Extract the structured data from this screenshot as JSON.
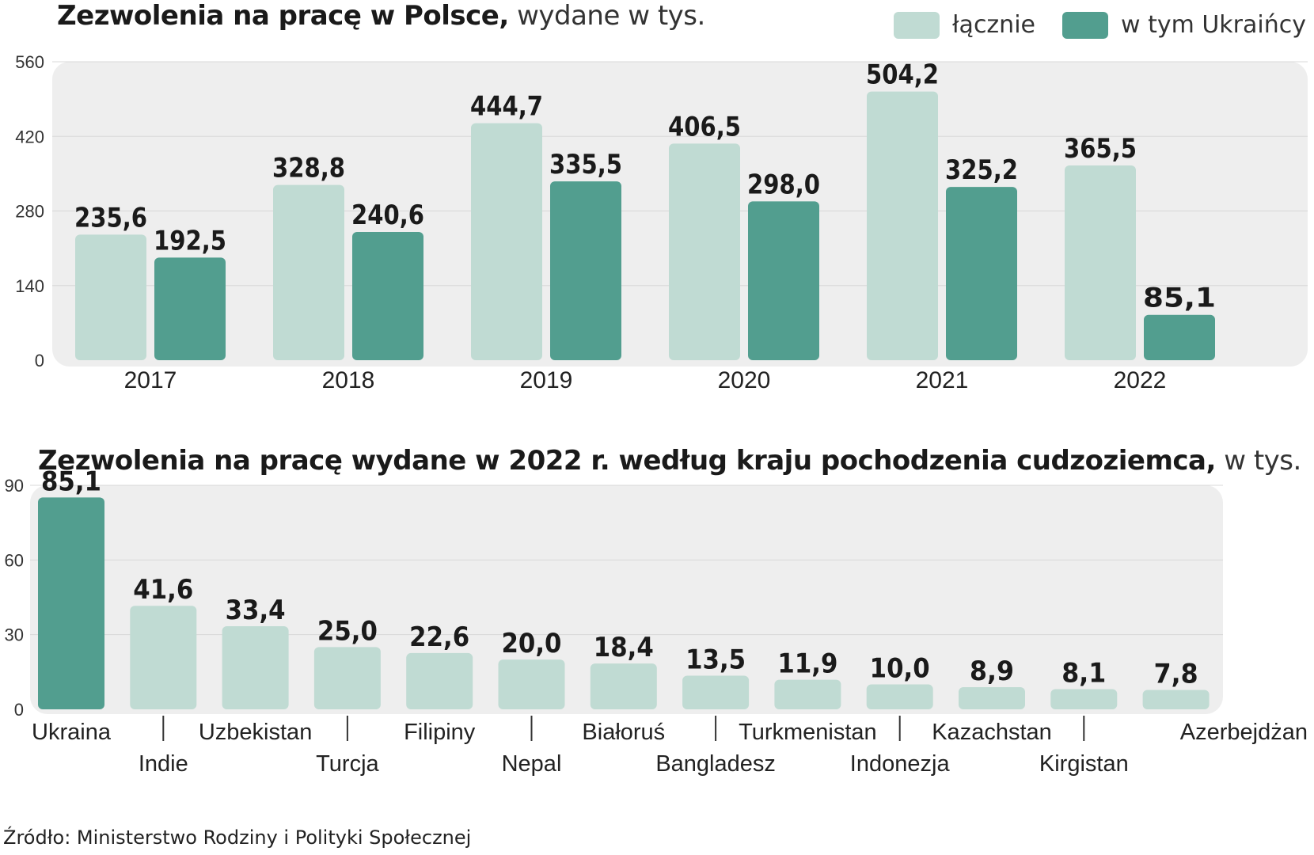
{
  "colors": {
    "total": "#c0dbd3",
    "ukraine": "#529e8f",
    "panel": "#eeeeee",
    "grid": "#d8d8d8"
  },
  "legend": {
    "total": "łącznie",
    "ukraine": "w tym Ukraińcy"
  },
  "source": "Źródło: Ministerstwo Rodziny i Polityki Społecznej",
  "chart_data": [
    {
      "type": "bar",
      "title": "Zezwolenia na pracę w Polsce,",
      "subtitle": "wydane w tys.",
      "categories": [
        "2017",
        "2018",
        "2019",
        "2020",
        "2021",
        "2022"
      ],
      "series": [
        {
          "name": "łącznie",
          "values": [
            235.6,
            328.8,
            444.7,
            406.5,
            504.2,
            365.5
          ],
          "labels": [
            "235,6",
            "328,8",
            "444,7",
            "406,5",
            "504,2",
            "365,5"
          ]
        },
        {
          "name": "w tym Ukraińcy",
          "values": [
            192.5,
            240.6,
            335.5,
            298.0,
            325.2,
            85.1
          ],
          "labels": [
            "192,5",
            "240,6",
            "335,5",
            "298,0",
            "325,2",
            "85,1"
          ]
        }
      ],
      "ylim": [
        0,
        560
      ],
      "yticks": [
        "0",
        "140",
        "280",
        "420",
        "560"
      ],
      "grid": true
    },
    {
      "type": "bar",
      "title": "Zezwolenia na pracę wydane w 2022 r. według kraju pochodzenia cudzoziemca,",
      "subtitle": "w tys.",
      "categories": [
        "Ukraina",
        "Indie",
        "Uzbekistan",
        "Turcja",
        "Filipiny",
        "Nepal",
        "Białoruś",
        "Bangladesz",
        "Turkmenistan",
        "Indonezja",
        "Kazachstan",
        "Kirgistan",
        "Azerbejdżan"
      ],
      "values": [
        85.1,
        41.6,
        33.4,
        25.0,
        22.6,
        20.0,
        18.4,
        13.5,
        11.9,
        10.0,
        8.9,
        8.1,
        7.8
      ],
      "labels": [
        "85,1",
        "41,6",
        "33,4",
        "25,0",
        "22,6",
        "20,0",
        "18,4",
        "13,5",
        "11,9",
        "10,0",
        "8,9",
        "8,1",
        "7,8"
      ],
      "ylim": [
        0,
        90
      ],
      "yticks": [
        "0",
        "30",
        "60",
        "90"
      ],
      "grid": true
    }
  ]
}
